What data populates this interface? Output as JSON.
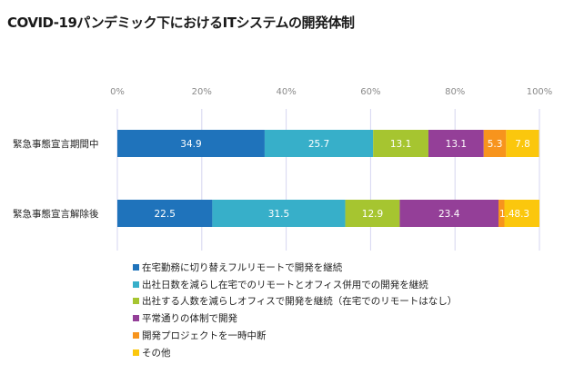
{
  "chart_data": {
    "type": "bar",
    "orientation": "horizontal",
    "stacked": true,
    "title": "COVID-19パンデミック下におけるITシステムの開発体制",
    "xlabel": "",
    "ylabel": "",
    "xlim": [
      0,
      100
    ],
    "x_tick_labels": [
      "0%",
      "20%",
      "40%",
      "60%",
      "80%",
      "100%"
    ],
    "x_ticks": [
      0,
      20,
      40,
      60,
      80,
      100
    ],
    "grid": true,
    "legend_position": "bottom",
    "categories": [
      "緊急事態宣言期間中",
      "緊急事態宣言解除後"
    ],
    "series": [
      {
        "name": "在宅勤務に切り替えフルリモートで開発を継続",
        "color": "#1f73bb",
        "values": [
          34.9,
          22.5
        ],
        "labels": [
          "34.9",
          "22.5"
        ]
      },
      {
        "name": "出社日数を減らし在宅でのリモートとオフィス併用での開発を継続",
        "color": "#37afc9",
        "values": [
          25.7,
          31.5
        ],
        "labels": [
          "25.7",
          "31.5"
        ]
      },
      {
        "name": "出社する人数を減らしオフィスで開発を継続（在宅でのリモートはなし）",
        "color": "#a6c530",
        "values": [
          13.1,
          12.9
        ],
        "labels": [
          "13.1",
          "12.9"
        ]
      },
      {
        "name": "平常通りの体制で開発",
        "color": "#943f98",
        "values": [
          13.1,
          23.4
        ],
        "labels": [
          "13.1",
          "23.4"
        ]
      },
      {
        "name": "開発プロジェクトを一時中断",
        "color": "#f7941d",
        "values": [
          5.3,
          1.4
        ],
        "labels": [
          "5.3",
          "1.4"
        ]
      },
      {
        "name": "その他",
        "color": "#fbc70d",
        "values": [
          7.8,
          8.3
        ],
        "labels": [
          "7.8",
          "8.3"
        ]
      }
    ]
  }
}
